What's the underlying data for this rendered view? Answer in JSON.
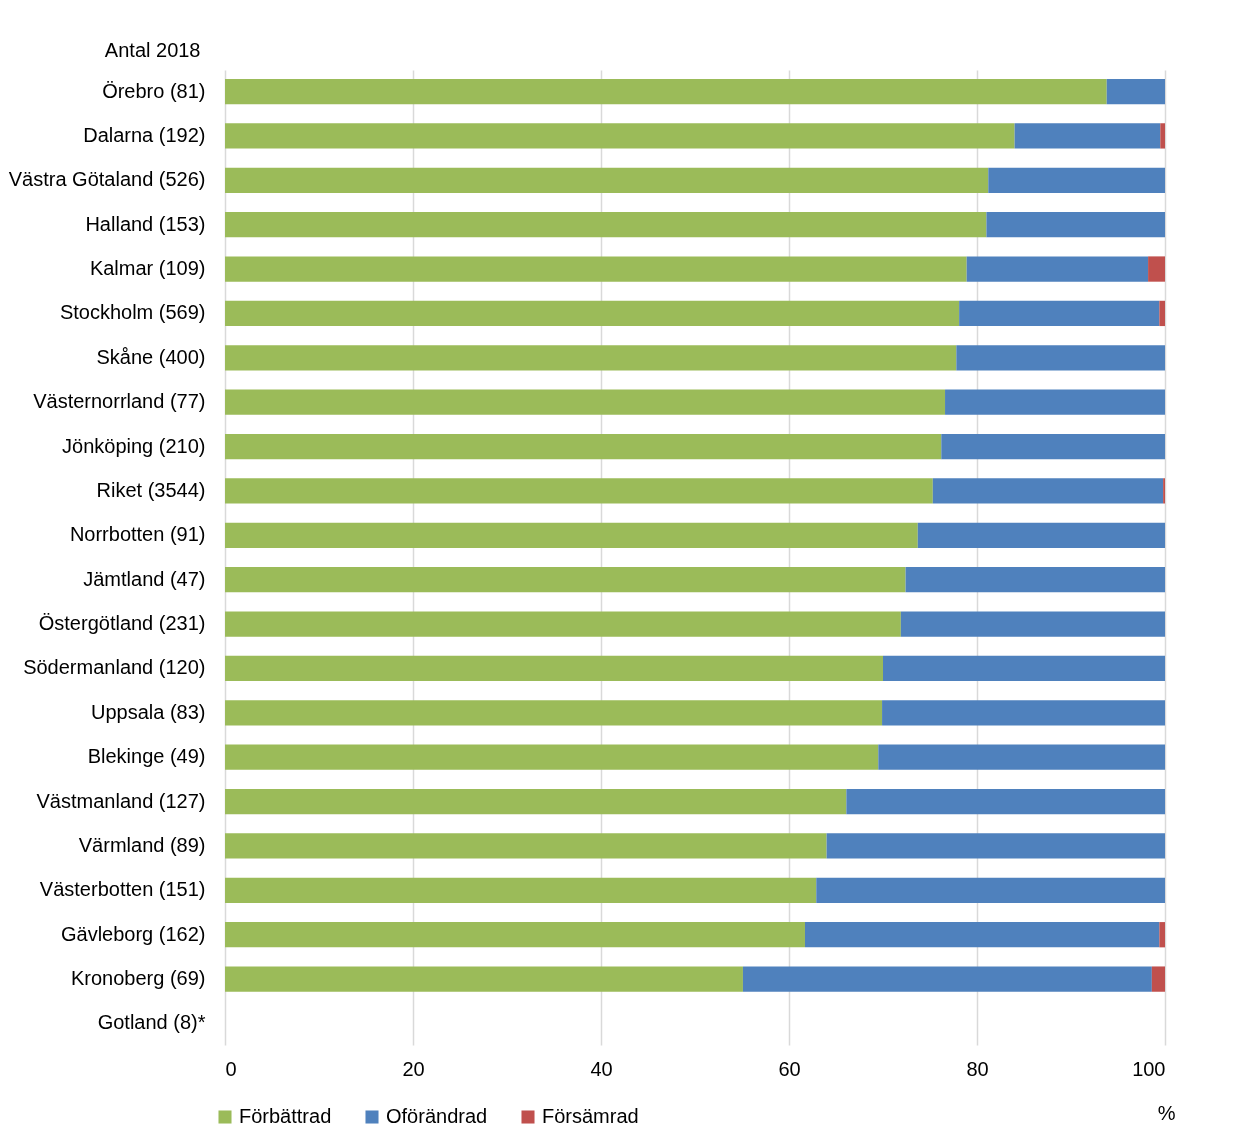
{
  "chart_data": {
    "type": "bar",
    "orientation": "horizontal",
    "stacked": true,
    "ylabel": "Antal 2018",
    "xlabel": "%",
    "categories": [
      "Örebro (81)",
      "Dalarna (192)",
      "Västra Götaland (526)",
      "Halland (153)",
      "Kalmar (109)",
      "Stockholm (569)",
      "Skåne (400)",
      "Västernorrland (77)",
      "Jönköping (210)",
      "Riket (3544)",
      "Norrbotten (91)",
      "Jämtland (47)",
      "Östergötland (231)",
      "Södermanland (120)",
      "Uppsala (83)",
      "Blekinge (49)",
      "Västmanland (127)",
      "Värmland (89)",
      "Västerbotten (151)",
      "Gävleborg (162)",
      "Kronoberg (69)",
      "Gotland (8)*"
    ],
    "series": [
      {
        "name": "Förbättrad",
        "color": "#9bbb59",
        "values": [
          93.8,
          84.0,
          81.2,
          81.0,
          78.9,
          78.1,
          77.8,
          76.6,
          76.2,
          75.3,
          73.7,
          72.4,
          71.9,
          70.0,
          69.9,
          69.5,
          66.1,
          64.0,
          62.9,
          61.7,
          55.1,
          null
        ]
      },
      {
        "name": "Oförändrad",
        "color": "#4f81bd",
        "values": [
          6.2,
          15.5,
          18.8,
          19.0,
          19.3,
          21.3,
          22.2,
          23.4,
          23.8,
          24.5,
          26.3,
          27.6,
          28.1,
          30.0,
          30.1,
          30.5,
          33.9,
          36.0,
          37.1,
          37.7,
          43.5,
          null
        ]
      },
      {
        "name": "Försämrad",
        "color": "#c0504d",
        "values": [
          0,
          0.5,
          0,
          0,
          1.8,
          0.6,
          0,
          0,
          0,
          0.2,
          0,
          0,
          0,
          0,
          0,
          0,
          0,
          0,
          0,
          0.6,
          1.4,
          null
        ]
      }
    ],
    "xlim": [
      0,
      100
    ],
    "xticks": [
      0,
      20,
      40,
      60,
      80,
      100
    ],
    "grid": "x",
    "legend": "bottom left"
  }
}
